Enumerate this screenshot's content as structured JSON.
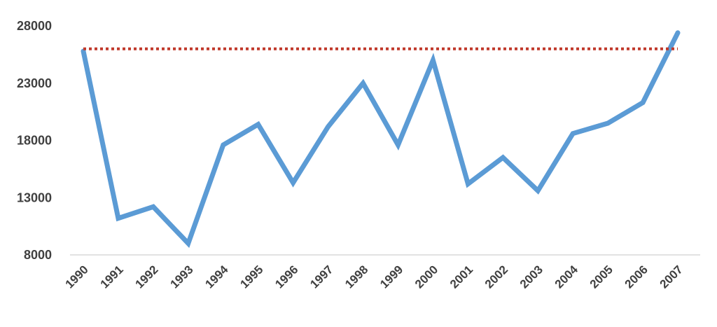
{
  "chart_data": {
    "type": "line",
    "title": "",
    "xlabel": "",
    "ylabel": "",
    "categories": [
      "1990",
      "1991",
      "1992",
      "1993",
      "1994",
      "1995",
      "1996",
      "1997",
      "1998",
      "1999",
      "2000",
      "2001",
      "2002",
      "2003",
      "2004",
      "2005",
      "2006",
      "2007"
    ],
    "series": [
      {
        "values": [
          25800,
          11200,
          12200,
          9000,
          17600,
          19400,
          14300,
          19200,
          23000,
          17600,
          25000,
          14200,
          16500,
          13600,
          18600,
          19500,
          21300,
          27400
        ],
        "color": "#5b9bd5",
        "style": "solid"
      },
      {
        "values": [
          26000,
          26000,
          26000,
          26000,
          26000,
          26000,
          26000,
          26000,
          26000,
          26000,
          26000,
          26000,
          26000,
          26000,
          26000,
          26000,
          26000,
          26000
        ],
        "color": "#c0392b",
        "style": "dotted"
      }
    ],
    "yticks": [
      "8000",
      "13000",
      "18000",
      "23000",
      "28000"
    ],
    "ylim": [
      8000,
      28000
    ],
    "grid": false,
    "legend": "none",
    "colors": {
      "axis": "#d9d9d9",
      "text": "#404040"
    }
  }
}
